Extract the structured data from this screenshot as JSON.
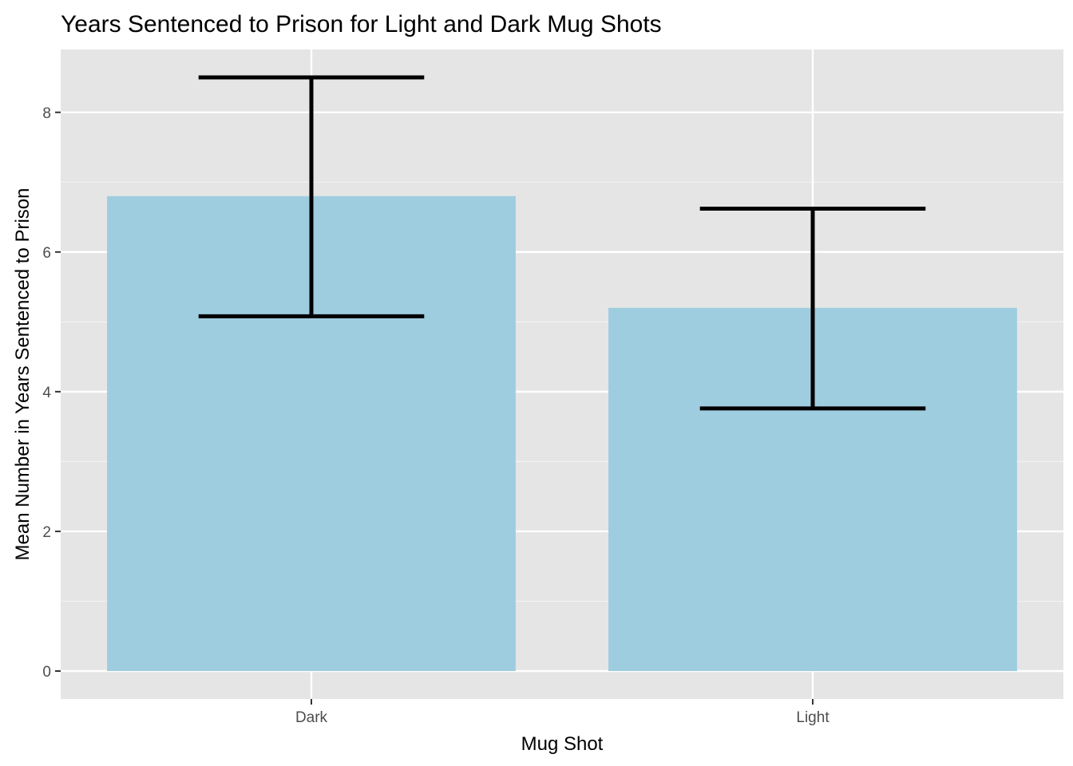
{
  "chart_data": {
    "type": "bar",
    "title": "Years Sentenced to Prison for Light and Dark Mug Shots",
    "xlabel": "Mug Shot",
    "ylabel": "Mean Number in Years Sentenced to Prison",
    "categories": [
      "Dark",
      "Light"
    ],
    "values": [
      6.8,
      5.2
    ],
    "error_bars": {
      "lower": [
        5.08,
        3.76
      ],
      "upper": [
        8.5,
        6.62
      ]
    },
    "ylim": [
      -0.4,
      8.9
    ],
    "yticks": [
      0,
      2,
      4,
      6,
      8
    ],
    "ytick_labels": [
      "0",
      "2",
      "4",
      "6",
      "8"
    ],
    "grid": true,
    "legend": "none",
    "colors": {
      "bar_fill": "#9ECDDF",
      "panel_background": "#E5E5E5",
      "grid_major": "#FFFFFF",
      "grid_minor": "#F2F2F2",
      "error_bar": "#000000",
      "tick": "#333333",
      "tick_label": "#4D4D4D"
    }
  }
}
